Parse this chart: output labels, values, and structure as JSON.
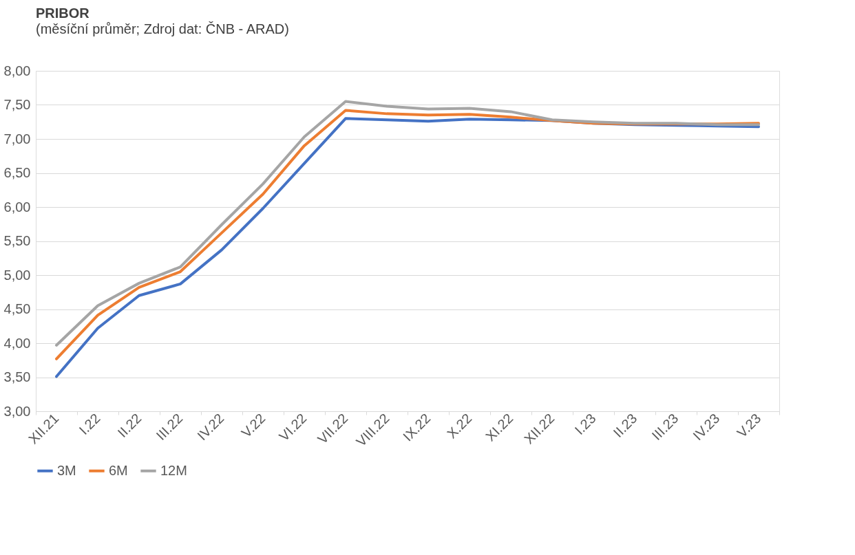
{
  "chart_data": {
    "type": "line",
    "title": "PRIBOR",
    "subtitle": "(měsíční průměr; Zdroj dat: ČNB - ARAD)",
    "categories": [
      "XII.21",
      "I.22",
      "II.22",
      "III.22",
      "IV.22",
      "V.22",
      "VI.22",
      "VII.22",
      "VIII.22",
      "IX.22",
      "X.22",
      "XI.22",
      "XII.22",
      "I.23",
      "II.23",
      "III.23",
      "IV.23",
      "V.23"
    ],
    "series": [
      {
        "name": "3M",
        "color": "#4472c4",
        "values": [
          3.51,
          4.22,
          4.7,
          4.87,
          5.37,
          5.98,
          6.64,
          7.3,
          7.28,
          7.26,
          7.29,
          7.28,
          7.27,
          7.23,
          7.21,
          7.2,
          7.19,
          7.18
        ]
      },
      {
        "name": "6M",
        "color": "#ed7d31",
        "values": [
          3.77,
          4.41,
          4.82,
          5.05,
          5.62,
          6.19,
          6.9,
          7.42,
          7.37,
          7.35,
          7.36,
          7.32,
          7.27,
          7.23,
          7.22,
          7.22,
          7.22,
          7.23
        ]
      },
      {
        "name": "12M",
        "color": "#a5a5a5",
        "values": [
          3.97,
          4.55,
          4.88,
          5.12,
          5.74,
          6.34,
          7.03,
          7.55,
          7.48,
          7.44,
          7.45,
          7.4,
          7.28,
          7.25,
          7.23,
          7.23,
          7.21,
          7.21
        ]
      }
    ],
    "ylim": [
      3,
      8
    ],
    "yticks": [
      {
        "value": 3,
        "label": "3,00"
      },
      {
        "value": 3.5,
        "label": "3,50"
      },
      {
        "value": 4,
        "label": "4,00"
      },
      {
        "value": 4.5,
        "label": "4,50"
      },
      {
        "value": 5,
        "label": "5,00"
      },
      {
        "value": 5.5,
        "label": "5,50"
      },
      {
        "value": 6,
        "label": "6,00"
      },
      {
        "value": 6.5,
        "label": "6,50"
      },
      {
        "value": 7,
        "label": "7,00"
      },
      {
        "value": 7.5,
        "label": "7,50"
      },
      {
        "value": 8,
        "label": "8,00"
      }
    ],
    "grid": "y",
    "legend": "bottom",
    "marker": "none",
    "line_style": "solid"
  }
}
